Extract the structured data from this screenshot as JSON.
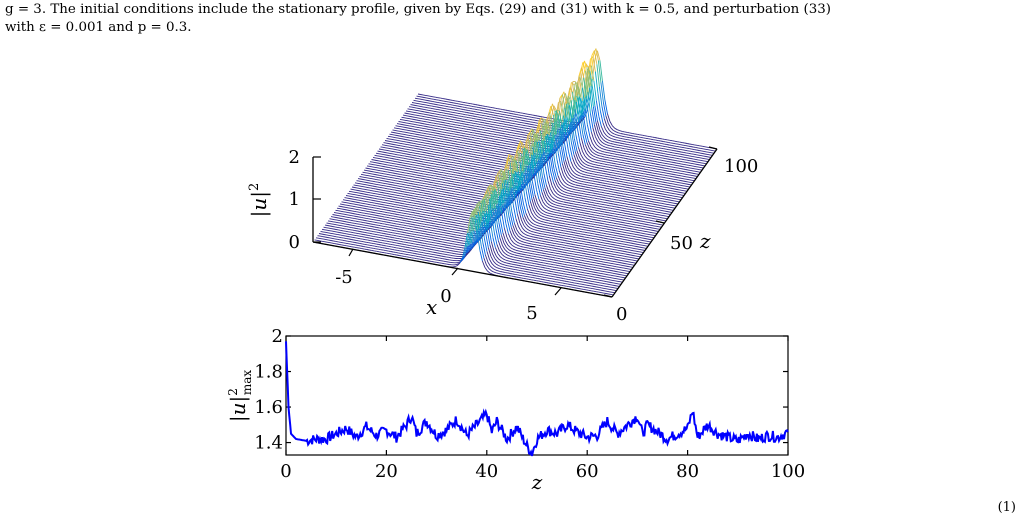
{
  "caption": {
    "line1": "g = 3. The initial conditions include the stationary profile, given by Eqs. (29) and (31) with k = 0.5, and perturbation (33)",
    "line2": "with ε = 0.001 and p = 0.3."
  },
  "figure_top": {
    "zlabel": "|u|",
    "zlabel_sup": "2",
    "xlabel": "x",
    "ylabel": "z",
    "x_ticks": [
      "-5",
      "0",
      "5"
    ],
    "z_ticks": [
      "0",
      "1",
      "2"
    ],
    "y_ticks": [
      "0",
      "50",
      "100"
    ]
  },
  "figure_bottom": {
    "ylabel": "|u|",
    "ylabel_sup": "2",
    "ylabel_sub": "max",
    "xlabel": "z"
  },
  "footer_fragment": "(1)",
  "chart_data": [
    {
      "type": "area",
      "title": "",
      "xlabel": "x",
      "ylabel": "z",
      "zlabel": "|u|^2",
      "xlim": [
        -9,
        9
      ],
      "ylim": [
        0,
        100
      ],
      "zlim": [
        0,
        2
      ],
      "x_ticks": [
        -5,
        0,
        5
      ],
      "y_ticks": [
        0,
        50,
        100
      ],
      "z_ticks": [
        0,
        1,
        2
      ],
      "description_of_series": "waterfall of |u|^2 profiles vs x for z from 0 to 100",
      "initial_peak": 1.42,
      "max_peak": 1.95,
      "colormap": "parula"
    },
    {
      "type": "line",
      "title": "",
      "xlabel": "z",
      "ylabel": "|u|^2_max",
      "xlim": [
        0,
        100
      ],
      "ylim": [
        1.33,
        2.0
      ],
      "x_ticks": [
        0,
        20,
        40,
        60,
        80,
        100
      ],
      "y_ticks": [
        1.4,
        1.6,
        1.8,
        2
      ],
      "series": [
        {
          "color": "#0000ff",
          "x": [
            0,
            0.5,
            1,
            2,
            4,
            6,
            8,
            10,
            12,
            14,
            16,
            18,
            20,
            22,
            24,
            25,
            26,
            28,
            30,
            32,
            34,
            36,
            38,
            40,
            41,
            42,
            44,
            46,
            48,
            49,
            50,
            52,
            54,
            56,
            58,
            60,
            62,
            64,
            66,
            68,
            70,
            71,
            72,
            74,
            76,
            78,
            80,
            81,
            82,
            84,
            86,
            88,
            90,
            92,
            94,
            96,
            98,
            100
          ],
          "y": [
            1.97,
            1.6,
            1.45,
            1.42,
            1.41,
            1.42,
            1.42,
            1.45,
            1.48,
            1.43,
            1.49,
            1.44,
            1.47,
            1.43,
            1.5,
            1.55,
            1.45,
            1.52,
            1.44,
            1.47,
            1.53,
            1.44,
            1.5,
            1.56,
            1.46,
            1.52,
            1.42,
            1.49,
            1.38,
            1.34,
            1.42,
            1.47,
            1.45,
            1.5,
            1.46,
            1.43,
            1.44,
            1.52,
            1.45,
            1.5,
            1.55,
            1.45,
            1.5,
            1.46,
            1.42,
            1.45,
            1.48,
            1.58,
            1.43,
            1.5,
            1.45,
            1.43,
            1.41,
            1.45,
            1.42,
            1.44,
            1.43,
            1.46
          ]
        }
      ]
    }
  ]
}
